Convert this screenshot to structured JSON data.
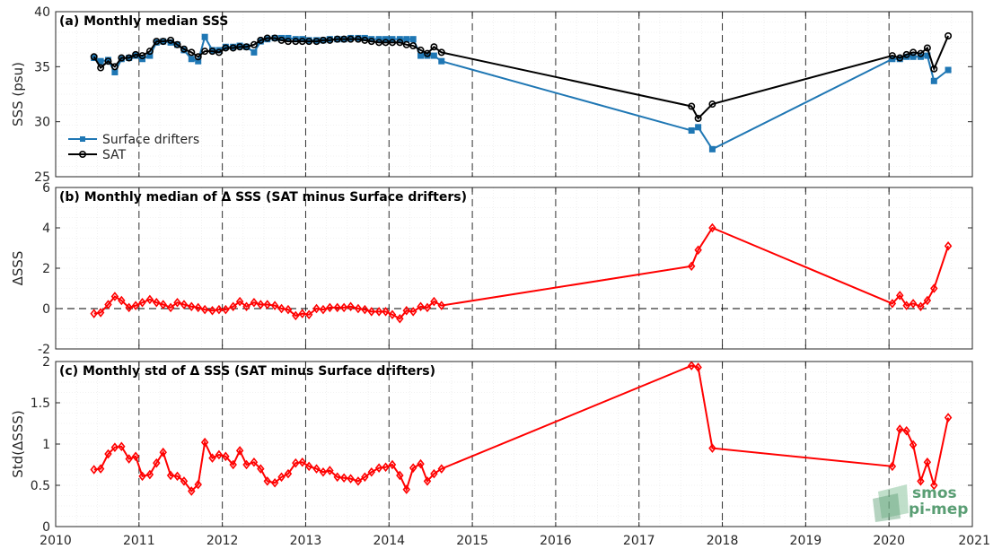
{
  "logo": {
    "line1": "smos",
    "line2": "pi-mep",
    "color": "#5a9e74"
  },
  "x_ticks": [
    "2010",
    "2011",
    "2012",
    "2013",
    "2014",
    "2015",
    "2016",
    "2017",
    "2018",
    "2019",
    "2020",
    "2021"
  ],
  "chart_data": [
    {
      "type": "line",
      "title": "(a) Monthly median SSS",
      "ylabel": "SSS (psu)",
      "ylim": [
        25,
        40
      ],
      "yticks": [
        "25",
        "30",
        "35",
        "40"
      ],
      "xlim": [
        2010,
        2021
      ],
      "grid": true,
      "legend_position": "left",
      "series": [
        {
          "name": "Surface drifters",
          "color": "#1f77b4",
          "marker": "square",
          "x": [
            2010.46,
            2010.54,
            2010.63,
            2010.71,
            2010.79,
            2010.88,
            2010.96,
            2011.04,
            2011.13,
            2011.21,
            2011.29,
            2011.38,
            2011.46,
            2011.54,
            2011.63,
            2011.71,
            2011.79,
            2011.88,
            2011.96,
            2012.04,
            2012.13,
            2012.21,
            2012.29,
            2012.38,
            2012.46,
            2012.54,
            2012.63,
            2012.71,
            2012.79,
            2012.88,
            2012.96,
            2013.04,
            2013.13,
            2013.21,
            2013.29,
            2013.38,
            2013.46,
            2013.54,
            2013.63,
            2013.71,
            2013.79,
            2013.88,
            2013.96,
            2014.04,
            2014.13,
            2014.21,
            2014.29,
            2014.38,
            2014.46,
            2014.54,
            2014.63,
            2017.63,
            2017.71,
            2017.88,
            2020.04,
            2020.13,
            2020.21,
            2020.29,
            2020.38,
            2020.46,
            2020.54,
            2020.71
          ],
          "y": [
            35.8,
            35.5,
            35.6,
            34.5,
            35.7,
            35.8,
            36.0,
            35.7,
            36.0,
            37.2,
            37.3,
            37.2,
            37.0,
            36.5,
            35.7,
            35.5,
            37.7,
            36.5,
            36.5,
            36.8,
            36.8,
            36.9,
            36.8,
            36.3,
            37.3,
            37.5,
            37.6,
            37.6,
            37.6,
            37.5,
            37.5,
            37.4,
            37.4,
            37.4,
            37.5,
            37.5,
            37.5,
            37.6,
            37.6,
            37.6,
            37.5,
            37.5,
            37.5,
            37.5,
            37.5,
            37.5,
            37.5,
            36.0,
            36.0,
            36.0,
            35.5,
            29.2,
            29.5,
            27.5,
            35.7,
            35.7,
            35.9,
            35.9,
            35.9,
            36.0,
            33.7,
            34.7
          ]
        },
        {
          "name": "SAT",
          "color": "#000000",
          "marker": "circle",
          "x": [
            2010.46,
            2010.54,
            2010.63,
            2010.71,
            2010.79,
            2010.88,
            2010.96,
            2011.04,
            2011.13,
            2011.21,
            2011.29,
            2011.38,
            2011.46,
            2011.54,
            2011.63,
            2011.71,
            2011.79,
            2011.88,
            2011.96,
            2012.04,
            2012.13,
            2012.21,
            2012.29,
            2012.38,
            2012.46,
            2012.54,
            2012.63,
            2012.71,
            2012.79,
            2012.88,
            2012.96,
            2013.04,
            2013.13,
            2013.21,
            2013.29,
            2013.38,
            2013.46,
            2013.54,
            2013.63,
            2013.71,
            2013.79,
            2013.88,
            2013.96,
            2014.04,
            2014.13,
            2014.21,
            2014.29,
            2014.38,
            2014.46,
            2014.54,
            2014.63,
            2017.63,
            2017.71,
            2017.88,
            2020.04,
            2020.13,
            2020.21,
            2020.29,
            2020.38,
            2020.46,
            2020.54,
            2020.71
          ],
          "y": [
            35.9,
            34.9,
            35.5,
            35.0,
            35.8,
            35.8,
            36.1,
            36.0,
            36.4,
            37.3,
            37.3,
            37.4,
            37.0,
            36.6,
            36.3,
            35.9,
            36.4,
            36.4,
            36.3,
            36.7,
            36.7,
            36.8,
            36.8,
            37.0,
            37.4,
            37.6,
            37.6,
            37.4,
            37.3,
            37.3,
            37.3,
            37.3,
            37.3,
            37.4,
            37.4,
            37.5,
            37.5,
            37.5,
            37.5,
            37.4,
            37.3,
            37.2,
            37.2,
            37.2,
            37.2,
            37.0,
            36.9,
            36.5,
            36.2,
            36.8,
            36.3,
            31.4,
            30.3,
            31.6,
            36.0,
            35.8,
            36.1,
            36.3,
            36.2,
            36.7,
            34.8,
            37.8
          ]
        }
      ]
    },
    {
      "type": "line",
      "title": "(b) Monthly median of Δ SSS (SAT minus Surface drifters)",
      "ylabel": "ΔSSS",
      "ylim": [
        -2,
        6
      ],
      "yticks": [
        "-2",
        "0",
        "2",
        "4",
        "6"
      ],
      "xlim": [
        2010,
        2021
      ],
      "grid": true,
      "reference_line": 0,
      "series": [
        {
          "color": "#ff0000",
          "marker": "diamond",
          "x": [
            2010.46,
            2010.54,
            2010.63,
            2010.71,
            2010.79,
            2010.88,
            2010.96,
            2011.04,
            2011.13,
            2011.21,
            2011.29,
            2011.38,
            2011.46,
            2011.54,
            2011.63,
            2011.71,
            2011.79,
            2011.88,
            2011.96,
            2012.04,
            2012.13,
            2012.21,
            2012.29,
            2012.38,
            2012.46,
            2012.54,
            2012.63,
            2012.71,
            2012.79,
            2012.88,
            2012.96,
            2013.04,
            2013.13,
            2013.21,
            2013.29,
            2013.38,
            2013.46,
            2013.54,
            2013.63,
            2013.71,
            2013.79,
            2013.88,
            2013.96,
            2014.04,
            2014.13,
            2014.21,
            2014.29,
            2014.38,
            2014.46,
            2014.54,
            2014.63,
            2017.63,
            2017.71,
            2017.88,
            2020.04,
            2020.13,
            2020.21,
            2020.29,
            2020.38,
            2020.46,
            2020.54,
            2020.71
          ],
          "y": [
            -0.25,
            -0.2,
            0.2,
            0.6,
            0.4,
            0.05,
            0.15,
            0.3,
            0.45,
            0.3,
            0.2,
            0.05,
            0.3,
            0.2,
            0.1,
            0.05,
            -0.05,
            -0.1,
            -0.05,
            -0.05,
            0.1,
            0.35,
            0.1,
            0.3,
            0.2,
            0.2,
            0.15,
            0.0,
            -0.05,
            -0.35,
            -0.25,
            -0.3,
            0.0,
            -0.05,
            0.05,
            0.05,
            0.05,
            0.1,
            0.0,
            -0.05,
            -0.15,
            -0.15,
            -0.15,
            -0.3,
            -0.5,
            -0.1,
            -0.15,
            0.1,
            0.05,
            0.35,
            0.15,
            2.1,
            2.9,
            4.0,
            0.25,
            0.65,
            0.15,
            0.25,
            0.1,
            0.4,
            1.0,
            3.1
          ]
        }
      ]
    },
    {
      "type": "line",
      "title": "(c) Monthly std of Δ SSS (SAT minus Surface drifters)",
      "ylabel": "Std(ΔSSS)",
      "ylim": [
        0,
        2
      ],
      "yticks": [
        "0",
        "0.5",
        "1",
        "1.5",
        "2"
      ],
      "xlim": [
        2010,
        2021
      ],
      "grid": true,
      "series": [
        {
          "color": "#ff0000",
          "marker": "diamond",
          "x": [
            2010.46,
            2010.54,
            2010.63,
            2010.71,
            2010.79,
            2010.88,
            2010.96,
            2011.04,
            2011.13,
            2011.21,
            2011.29,
            2011.38,
            2011.46,
            2011.54,
            2011.63,
            2011.71,
            2011.79,
            2011.88,
            2011.96,
            2012.04,
            2012.13,
            2012.21,
            2012.29,
            2012.38,
            2012.46,
            2012.54,
            2012.63,
            2012.71,
            2012.79,
            2012.88,
            2012.96,
            2013.04,
            2013.13,
            2013.21,
            2013.29,
            2013.38,
            2013.46,
            2013.54,
            2013.63,
            2013.71,
            2013.79,
            2013.88,
            2013.96,
            2014.04,
            2014.13,
            2014.21,
            2014.29,
            2014.38,
            2014.46,
            2014.54,
            2014.63,
            2017.63,
            2017.71,
            2017.88,
            2020.04,
            2020.13,
            2020.21,
            2020.29,
            2020.38,
            2020.46,
            2020.54,
            2020.71
          ],
          "y": [
            0.69,
            0.7,
            0.88,
            0.96,
            0.97,
            0.82,
            0.85,
            0.61,
            0.63,
            0.77,
            0.9,
            0.62,
            0.61,
            0.55,
            0.43,
            0.51,
            1.02,
            0.83,
            0.87,
            0.85,
            0.75,
            0.92,
            0.75,
            0.78,
            0.7,
            0.55,
            0.53,
            0.6,
            0.64,
            0.77,
            0.78,
            0.73,
            0.7,
            0.66,
            0.68,
            0.6,
            0.59,
            0.58,
            0.55,
            0.6,
            0.66,
            0.71,
            0.72,
            0.75,
            0.62,
            0.45,
            0.71,
            0.76,
            0.55,
            0.64,
            0.7,
            1.95,
            1.93,
            0.95,
            0.73,
            1.18,
            1.16,
            0.99,
            0.55,
            0.78,
            0.5,
            1.32
          ]
        }
      ]
    }
  ]
}
